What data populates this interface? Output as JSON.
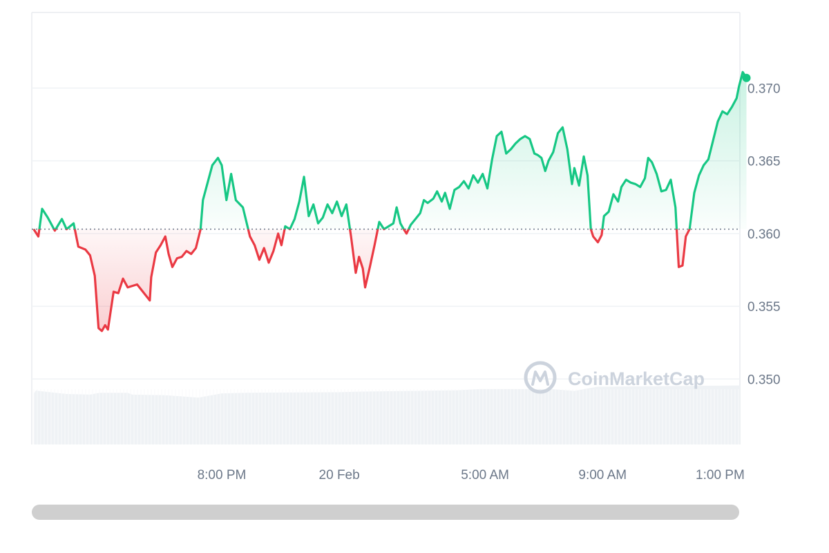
{
  "chart_data": {
    "type": "line",
    "watermark": "CoinMarketCap",
    "baseline": 0.3603,
    "ylim": [
      0.3455,
      0.3752
    ],
    "y_ticks": [
      {
        "value": 0.37,
        "label": "0.370"
      },
      {
        "value": 0.365,
        "label": "0.365"
      },
      {
        "value": 0.36,
        "label": "0.360"
      },
      {
        "value": 0.355,
        "label": "0.355"
      },
      {
        "value": 0.35,
        "label": "0.350"
      }
    ],
    "x_ticks": [
      {
        "t": 4,
        "label": "8:00 PM"
      },
      {
        "t": 6.5,
        "label": "20 Feb"
      },
      {
        "t": 9.6,
        "label": "5:00 AM"
      },
      {
        "t": 12.1,
        "label": "9:00 AM"
      },
      {
        "t": 14.6,
        "label": "1:00 PM"
      }
    ],
    "x_range": [
      -0.04,
      15.02
    ],
    "colors": {
      "up": "#16c784",
      "down": "#ea3943",
      "grid": "#eff2f5",
      "volume": "#eff2f5"
    },
    "series": [
      {
        "values": [
          [
            0.0,
            0.3603
          ],
          [
            0.1,
            0.3598
          ],
          [
            0.18,
            0.3617
          ],
          [
            0.3,
            0.3611
          ],
          [
            0.45,
            0.3602
          ],
          [
            0.6,
            0.361
          ],
          [
            0.7,
            0.3603
          ],
          [
            0.85,
            0.3607
          ],
          [
            0.95,
            0.3591
          ],
          [
            1.1,
            0.3589
          ],
          [
            1.2,
            0.3585
          ],
          [
            1.3,
            0.3571
          ],
          [
            1.38,
            0.3535
          ],
          [
            1.45,
            0.3533
          ],
          [
            1.52,
            0.3537
          ],
          [
            1.58,
            0.3534
          ],
          [
            1.7,
            0.356
          ],
          [
            1.8,
            0.3559
          ],
          [
            1.9,
            0.3569
          ],
          [
            2.0,
            0.3563
          ],
          [
            2.1,
            0.3564
          ],
          [
            2.2,
            0.3565
          ],
          [
            2.47,
            0.3554
          ],
          [
            2.5,
            0.357
          ],
          [
            2.6,
            0.3587
          ],
          [
            2.7,
            0.3592
          ],
          [
            2.8,
            0.3598
          ],
          [
            2.87,
            0.3586
          ],
          [
            2.95,
            0.3577
          ],
          [
            3.05,
            0.3583
          ],
          [
            3.15,
            0.3584
          ],
          [
            3.25,
            0.3588
          ],
          [
            3.35,
            0.3586
          ],
          [
            3.45,
            0.359
          ],
          [
            3.55,
            0.3603
          ],
          [
            3.6,
            0.3623
          ],
          [
            3.7,
            0.3635
          ],
          [
            3.8,
            0.3647
          ],
          [
            3.92,
            0.3652
          ],
          [
            4.0,
            0.3647
          ],
          [
            4.1,
            0.3623
          ],
          [
            4.2,
            0.3641
          ],
          [
            4.3,
            0.3623
          ],
          [
            4.45,
            0.3618
          ],
          [
            4.6,
            0.3598
          ],
          [
            4.7,
            0.3592
          ],
          [
            4.8,
            0.3582
          ],
          [
            4.9,
            0.359
          ],
          [
            5.0,
            0.358
          ],
          [
            5.1,
            0.3588
          ],
          [
            5.2,
            0.36
          ],
          [
            5.27,
            0.3592
          ],
          [
            5.35,
            0.3605
          ],
          [
            5.45,
            0.3603
          ],
          [
            5.55,
            0.361
          ],
          [
            5.65,
            0.3622
          ],
          [
            5.75,
            0.3639
          ],
          [
            5.85,
            0.3612
          ],
          [
            5.95,
            0.362
          ],
          [
            6.05,
            0.3607
          ],
          [
            6.15,
            0.3611
          ],
          [
            6.25,
            0.362
          ],
          [
            6.35,
            0.3614
          ],
          [
            6.45,
            0.3622
          ],
          [
            6.55,
            0.3612
          ],
          [
            6.65,
            0.362
          ],
          [
            6.75,
            0.3598
          ],
          [
            6.85,
            0.3573
          ],
          [
            6.92,
            0.3584
          ],
          [
            7.0,
            0.3576
          ],
          [
            7.05,
            0.3563
          ],
          [
            7.15,
            0.3577
          ],
          [
            7.25,
            0.3592
          ],
          [
            7.35,
            0.3608
          ],
          [
            7.45,
            0.3603
          ],
          [
            7.55,
            0.3605
          ],
          [
            7.65,
            0.3607
          ],
          [
            7.72,
            0.3618
          ],
          [
            7.8,
            0.3607
          ],
          [
            7.87,
            0.3603
          ],
          [
            7.93,
            0.36
          ],
          [
            8.02,
            0.3606
          ],
          [
            8.12,
            0.361
          ],
          [
            8.22,
            0.3614
          ],
          [
            8.3,
            0.3623
          ],
          [
            8.38,
            0.3621
          ],
          [
            8.5,
            0.3624
          ],
          [
            8.58,
            0.3629
          ],
          [
            8.68,
            0.3622
          ],
          [
            8.75,
            0.3628
          ],
          [
            8.85,
            0.3617
          ],
          [
            8.95,
            0.363
          ],
          [
            9.05,
            0.3632
          ],
          [
            9.15,
            0.3636
          ],
          [
            9.25,
            0.3631
          ],
          [
            9.35,
            0.364
          ],
          [
            9.45,
            0.3635
          ],
          [
            9.55,
            0.3641
          ],
          [
            9.65,
            0.3631
          ],
          [
            9.75,
            0.3651
          ],
          [
            9.85,
            0.3667
          ],
          [
            9.95,
            0.367
          ],
          [
            10.05,
            0.3655
          ],
          [
            10.15,
            0.3658
          ],
          [
            10.25,
            0.3662
          ],
          [
            10.35,
            0.3665
          ],
          [
            10.45,
            0.3667
          ],
          [
            10.55,
            0.3665
          ],
          [
            10.65,
            0.3655
          ],
          [
            10.72,
            0.3654
          ],
          [
            10.8,
            0.3652
          ],
          [
            10.88,
            0.3643
          ],
          [
            10.95,
            0.365
          ],
          [
            11.05,
            0.3656
          ],
          [
            11.15,
            0.3669
          ],
          [
            11.25,
            0.3673
          ],
          [
            11.35,
            0.3658
          ],
          [
            11.45,
            0.3634
          ],
          [
            11.5,
            0.3645
          ],
          [
            11.6,
            0.3633
          ],
          [
            11.7,
            0.3653
          ],
          [
            11.78,
            0.364
          ],
          [
            11.85,
            0.3603
          ],
          [
            11.9,
            0.3598
          ],
          [
            12.0,
            0.3594
          ],
          [
            12.08,
            0.3599
          ],
          [
            12.13,
            0.3612
          ],
          [
            12.23,
            0.3615
          ],
          [
            12.33,
            0.3627
          ],
          [
            12.43,
            0.3622
          ],
          [
            12.5,
            0.3632
          ],
          [
            12.6,
            0.3637
          ],
          [
            12.7,
            0.3635
          ],
          [
            12.8,
            0.3634
          ],
          [
            12.9,
            0.3632
          ],
          [
            13.0,
            0.3638
          ],
          [
            13.07,
            0.3652
          ],
          [
            13.15,
            0.3649
          ],
          [
            13.25,
            0.3641
          ],
          [
            13.35,
            0.3629
          ],
          [
            13.45,
            0.363
          ],
          [
            13.55,
            0.3637
          ],
          [
            13.65,
            0.3618
          ],
          [
            13.72,
            0.3577
          ],
          [
            13.8,
            0.3578
          ],
          [
            13.87,
            0.3598
          ],
          [
            13.95,
            0.3603
          ],
          [
            14.05,
            0.3628
          ],
          [
            14.15,
            0.364
          ],
          [
            14.25,
            0.3647
          ],
          [
            14.35,
            0.3651
          ],
          [
            14.45,
            0.3664
          ],
          [
            14.55,
            0.3677
          ],
          [
            14.65,
            0.3684
          ],
          [
            14.75,
            0.3682
          ],
          [
            14.85,
            0.3687
          ],
          [
            14.95,
            0.3693
          ],
          [
            15.0,
            0.3701
          ],
          [
            15.08,
            0.3711
          ],
          [
            15.16,
            0.3707
          ]
        ]
      }
    ],
    "volume": [
      [
        0.0,
        0.83
      ],
      [
        0.05,
        0.89
      ],
      [
        0.1,
        0.88
      ],
      [
        0.7,
        0.83
      ],
      [
        1.2,
        0.82
      ],
      [
        1.4,
        0.85
      ],
      [
        2.0,
        0.85
      ],
      [
        2.1,
        0.82
      ],
      [
        2.8,
        0.81
      ],
      [
        3.5,
        0.77
      ],
      [
        4.0,
        0.84
      ],
      [
        4.5,
        0.85
      ],
      [
        6.5,
        0.86
      ],
      [
        7.0,
        0.87
      ],
      [
        9.0,
        0.89
      ],
      [
        9.5,
        0.91
      ],
      [
        11.0,
        0.91
      ],
      [
        11.5,
        0.88
      ],
      [
        12.0,
        0.95
      ],
      [
        13.5,
        0.96
      ],
      [
        15.02,
        0.97
      ]
    ]
  }
}
